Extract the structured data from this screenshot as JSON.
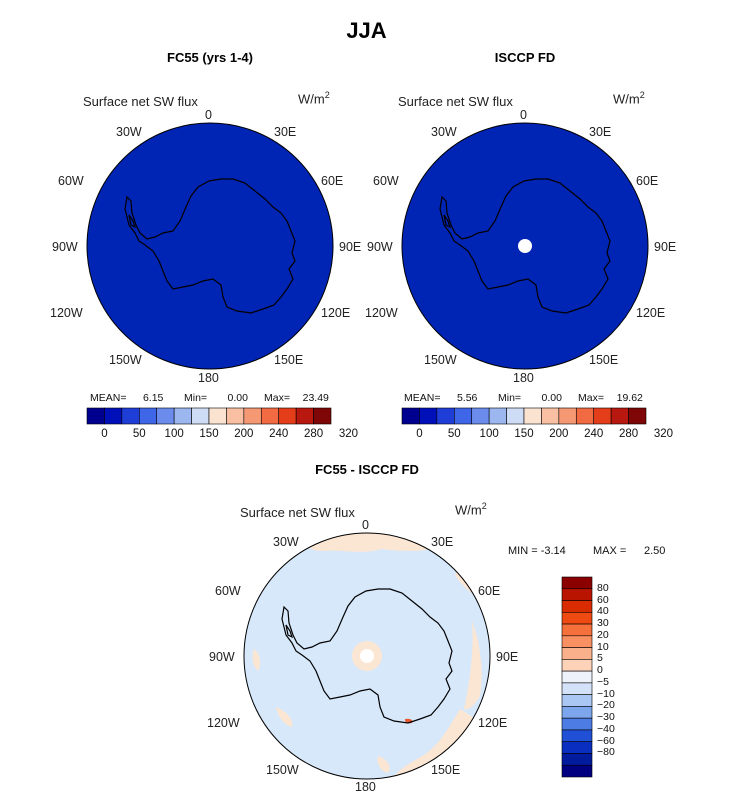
{
  "title": "JJA",
  "variable_label": "Surface net SW flux",
  "units_base": "W/m",
  "units_exp": "2",
  "panels": [
    {
      "title": "FC55 (yrs 1-4)",
      "stats": {
        "mean_label": "MEAN=",
        "mean": "6.15",
        "min_label": "Min=",
        "min": "0.00",
        "max_label": "Max=",
        "max": "23.49"
      }
    },
    {
      "title": "ISCCP FD",
      "stats": {
        "mean_label": "MEAN=",
        "mean": "5.56",
        "min_label": "Min=",
        "min": "0.00",
        "max_label": "Max=",
        "max": "19.62"
      }
    },
    {
      "title": "FC55 - ISCCP FD",
      "stats": {
        "min_label": "MIN =",
        "min": "-3.14",
        "max_label": "MAX =",
        "max": "2.50"
      }
    }
  ],
  "longitude_labels": [
    "0",
    "30E",
    "60E",
    "90E",
    "120E",
    "150E",
    "180",
    "150W",
    "120W",
    "90W",
    "60W",
    "30W"
  ],
  "colorbar_abs": {
    "ticks": [
      "0",
      "50",
      "100",
      "150",
      "200",
      "240",
      "280",
      "320"
    ],
    "colors": [
      "#000090",
      "#0010b8",
      "#1f3ed8",
      "#3f66e8",
      "#6b8cec",
      "#9cb6f0",
      "#cfdcf6",
      "#fbe3d2",
      "#f8bfa2",
      "#f59874",
      "#f26a42",
      "#e43d1a",
      "#b81810",
      "#7f0606"
    ]
  },
  "colorbar_diff": {
    "ticks": [
      "80",
      "60",
      "40",
      "30",
      "20",
      "10",
      "5",
      "0",
      "−5",
      "−10",
      "−20",
      "−30",
      "−40",
      "−60",
      "−80"
    ],
    "colors": [
      "#8b0000",
      "#b81400",
      "#d92c00",
      "#ee4a12",
      "#f5703a",
      "#f89062",
      "#fab08a",
      "#fcd2b8",
      "#eef2fa",
      "#d3e2f8",
      "#aac6f2",
      "#7ea6ec",
      "#4c7ce4",
      "#2050d6",
      "#0a2ec0",
      "#001b9e",
      "#000080"
    ]
  },
  "map_colors": {
    "abs_fill": "#0024b4",
    "diff_fill": "#d6e8fa",
    "diff_positive": "#fbe6d4",
    "pole": "#ffffff",
    "coast": "#000000"
  }
}
